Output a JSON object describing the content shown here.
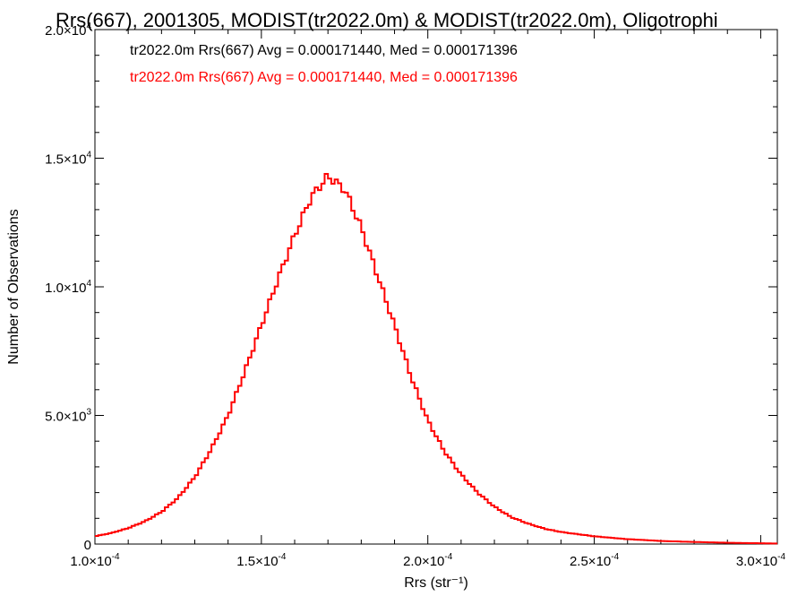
{
  "chart_data": {
    "type": "histogram",
    "title": "Rrs(667), 2001305, MODIST(tr2022.0m) & MODIST(tr2022.0m), Oligotrophi",
    "xlabel": "Rrs (str⁻¹)",
    "ylabel": "Number of Observations",
    "xlim": [
      0.0001,
      0.000305
    ],
    "ylim": [
      0,
      20000
    ],
    "x_ticks": [
      {
        "value": 0.0001,
        "mantissa": "1.0",
        "exponent": "-4"
      },
      {
        "value": 0.00015,
        "mantissa": "1.5",
        "exponent": "-4"
      },
      {
        "value": 0.0002,
        "mantissa": "2.0",
        "exponent": "-4"
      },
      {
        "value": 0.00025,
        "mantissa": "2.5",
        "exponent": "-4"
      },
      {
        "value": 0.0003,
        "mantissa": "3.0",
        "exponent": "-4"
      }
    ],
    "y_ticks": [
      {
        "value": 0,
        "label": "0"
      },
      {
        "value": 5000,
        "mantissa": "5.0",
        "exponent": "3"
      },
      {
        "value": 10000,
        "mantissa": "1.0",
        "exponent": "4"
      },
      {
        "value": 15000,
        "mantissa": "1.5",
        "exponent": "4"
      },
      {
        "value": 20000,
        "mantissa": "2.0",
        "exponent": "4"
      }
    ],
    "grid": false,
    "legend": {
      "placement": "top-left",
      "entries": [
        {
          "text": "tr2022.0m Rrs(667) Avg = 0.000171440, Med = 0.000171396",
          "color": "#000000"
        },
        {
          "text": "tr2022.0m Rrs(667) Avg = 0.000171440, Med = 0.000171396",
          "color": "#ff0000"
        }
      ]
    },
    "series": [
      {
        "color": "#ff0000",
        "points": [
          [
            0.0001,
            300
          ],
          [
            0.000105,
            430
          ],
          [
            0.00011,
            620
          ],
          [
            0.000115,
            880
          ],
          [
            0.00012,
            1250
          ],
          [
            0.000125,
            1800
          ],
          [
            0.00013,
            2600
          ],
          [
            0.000135,
            3700
          ],
          [
            0.00014,
            5000
          ],
          [
            0.000145,
            6700
          ],
          [
            0.00015,
            8500
          ],
          [
            0.000155,
            10300
          ],
          [
            0.00016,
            12000
          ],
          [
            0.000165,
            13500
          ],
          [
            0.00017,
            14300
          ],
          [
            0.000175,
            13800
          ],
          [
            0.00018,
            12300
          ],
          [
            0.000185,
            10400
          ],
          [
            0.00019,
            8500
          ],
          [
            0.000195,
            6500
          ],
          [
            0.0002,
            4800
          ],
          [
            0.000205,
            3600
          ],
          [
            0.00021,
            2700
          ],
          [
            0.000215,
            2000
          ],
          [
            0.00022,
            1450
          ],
          [
            0.000225,
            1050
          ],
          [
            0.00023,
            800
          ],
          [
            0.000235,
            600
          ],
          [
            0.00024,
            470
          ],
          [
            0.00025,
            300
          ],
          [
            0.00026,
            190
          ],
          [
            0.00027,
            120
          ],
          [
            0.00028,
            80
          ],
          [
            0.00029,
            50
          ],
          [
            0.0003,
            30
          ],
          [
            0.000305,
            20
          ]
        ]
      }
    ]
  }
}
